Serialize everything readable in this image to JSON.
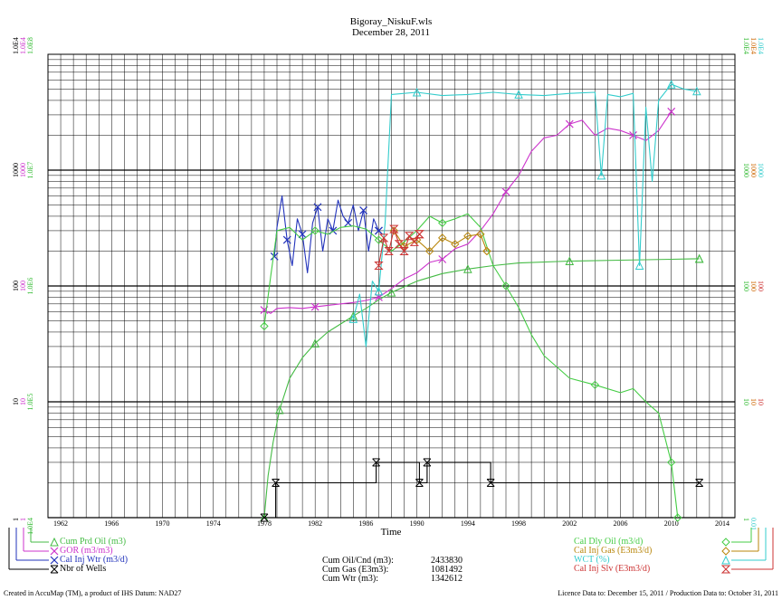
{
  "chart_data": {
    "type": "line",
    "title": "Bigoray_NiskuF.wls",
    "subtitle": "December 28, 2011",
    "xlabel": "Time",
    "x_ticks": [
      "1962",
      "1966",
      "1970",
      "1974",
      "1978",
      "1982",
      "1986",
      "1990",
      "1994",
      "1998",
      "2002",
      "2006",
      "2010",
      "2014"
    ],
    "xlim": [
      1961,
      2015
    ],
    "y_scale": "log",
    "ylim": [
      1,
      10000
    ],
    "left_axis_labels": [
      {
        "value": 10000,
        "lines": [
          {
            "text": "1.0E4",
            "color": "#000000"
          },
          {
            "text": "1.0E4",
            "color": "#cc33cc"
          },
          {
            "text": "1.0E8",
            "color": "#33bb33"
          }
        ]
      },
      {
        "value": 1000,
        "lines": [
          {
            "text": "1000",
            "color": "#000000"
          },
          {
            "text": "1000",
            "color": "#cc33cc"
          },
          {
            "text": "1.0E7",
            "color": "#33bb33"
          }
        ]
      },
      {
        "value": 100,
        "lines": [
          {
            "text": "100",
            "color": "#000000"
          },
          {
            "text": "100",
            "color": "#cc33cc"
          },
          {
            "text": "1.0E6",
            "color": "#33bb33"
          }
        ]
      },
      {
        "value": 10,
        "lines": [
          {
            "text": "10",
            "color": "#000000"
          },
          {
            "text": "10",
            "color": "#cc33cc"
          },
          {
            "text": "1.0E5",
            "color": "#33bb33"
          }
        ]
      },
      {
        "value": 1,
        "lines": [
          {
            "text": "1",
            "color": "#000000"
          },
          {
            "text": "1",
            "color": "#cc33cc"
          },
          {
            "text": "1.0E4",
            "color": "#33bb33"
          }
        ]
      }
    ],
    "right_axis_labels": [
      {
        "value": 10000,
        "lines": [
          {
            "text": "1.0E4",
            "color": "#33bb33"
          },
          {
            "text": "1.0E4",
            "color": "#cc6600"
          },
          {
            "text": "1.0E4",
            "color": "#33cccc"
          }
        ]
      },
      {
        "value": 1000,
        "lines": [
          {
            "text": "1000",
            "color": "#33bb33"
          },
          {
            "text": "1000",
            "color": "#cc6600"
          },
          {
            "text": "1000",
            "color": "#33cccc"
          }
        ]
      },
      {
        "value": 100,
        "lines": [
          {
            "text": "100",
            "color": "#33bb33"
          },
          {
            "text": "100",
            "color": "#cc6600"
          },
          {
            "text": "100",
            "color": "#cc3333"
          }
        ]
      },
      {
        "value": 10,
        "lines": [
          {
            "text": "10",
            "color": "#33bb33"
          },
          {
            "text": "10",
            "color": "#cc6600"
          },
          {
            "text": "10",
            "color": "#cc3333"
          }
        ]
      },
      {
        "value": 1,
        "lines": [
          {
            "text": "1",
            "color": "#33bb33"
          },
          {
            "text": "0.01",
            "color": "#33cccc"
          }
        ]
      }
    ],
    "series": [
      {
        "name": "Cum Prd Oil (m3)",
        "color": "#44bb44",
        "marker": "triangle",
        "x": [
          1978.0,
          1978.3,
          1978.7,
          1979.2,
          1980,
          1981,
          1982,
          1983,
          1984,
          1985,
          1986,
          1987,
          1988,
          1990,
          1992,
          1994,
          1996,
          1998,
          2002,
          2006,
          2010,
          2012.2
        ],
        "y": [
          1.0,
          2.3,
          4.5,
          8.5,
          16,
          24,
          32,
          40,
          47,
          55,
          64,
          76,
          88,
          110,
          128,
          140,
          150,
          158,
          164,
          167,
          170,
          172
        ]
      },
      {
        "name": "GOR (m3/m3)",
        "color": "#cc33cc",
        "marker": "x",
        "x": [
          1978,
          1978.5,
          1979,
          1980,
          1981,
          1982,
          1983,
          1984,
          1985,
          1986,
          1987,
          1988,
          1989,
          1990,
          1991,
          1992,
          1993,
          1994,
          1995,
          1996,
          1997,
          1998,
          1999,
          2000,
          2001,
          2002,
          2003,
          2004,
          2005,
          2006,
          2007,
          2008,
          2009,
          2010
        ],
        "y": [
          62,
          58,
          64,
          65,
          64,
          66,
          68,
          70,
          72,
          75,
          80,
          95,
          115,
          130,
          160,
          170,
          210,
          230,
          300,
          420,
          650,
          900,
          1450,
          1900,
          2000,
          2500,
          2700,
          2000,
          2300,
          2200,
          2000,
          1800,
          2200,
          3200
        ]
      },
      {
        "name": "Cal Inj Wtr (m3/d)",
        "color": "#2233bb",
        "marker": "x",
        "x": [
          1978.8,
          1979,
          1979.4,
          1979.8,
          1980.2,
          1980.6,
          1981,
          1981.4,
          1981.8,
          1982.2,
          1982.6,
          1983,
          1983.4,
          1983.8,
          1984.2,
          1984.6,
          1985,
          1985.4,
          1985.8,
          1986.2,
          1986.6,
          1987
        ],
        "y": [
          180,
          320,
          600,
          250,
          150,
          380,
          280,
          130,
          350,
          480,
          200,
          380,
          300,
          550,
          400,
          350,
          500,
          300,
          450,
          200,
          380,
          300
        ]
      },
      {
        "name": "Nbr of Wells",
        "color": "#000000",
        "marker": "xbox",
        "x": [
          1978,
          1978.9,
          1978.9,
          1986.8,
          1986.8,
          1990.2,
          1990.2,
          1990.8,
          1990.8,
          1995.8,
          1995.8,
          2012.2
        ],
        "y": [
          1,
          1,
          2,
          2,
          3,
          3,
          2,
          2,
          3,
          3,
          2,
          2
        ]
      },
      {
        "name": "Cal Dly Oil (m3/d)",
        "color": "#44cc44",
        "marker": "diamond",
        "x": [
          1978,
          1978.5,
          1979,
          1980,
          1981,
          1982,
          1983,
          1984,
          1985,
          1986,
          1987,
          1988,
          1989,
          1990,
          1991,
          1992,
          1993,
          1994,
          1995,
          1996,
          1997,
          1998,
          1999,
          2000,
          2002,
          2004,
          2006,
          2007,
          2008,
          2009,
          2010,
          2010.5
        ],
        "y": [
          45,
          120,
          300,
          320,
          250,
          300,
          280,
          320,
          330,
          310,
          250,
          200,
          240,
          300,
          400,
          350,
          380,
          420,
          320,
          150,
          100,
          65,
          38,
          25,
          16,
          14,
          12,
          13,
          10,
          8,
          3,
          1
        ]
      },
      {
        "name": "Cal Inj Gas (E3m3/d)",
        "color": "#b8860b",
        "marker": "diamond",
        "x": [
          1988.2,
          1989,
          1990,
          1991,
          1992,
          1993,
          1994,
          1995,
          1995.5
        ],
        "y": [
          300,
          220,
          250,
          200,
          260,
          230,
          270,
          280,
          200
        ]
      },
      {
        "name": "WCT (%)",
        "color": "#33cccc",
        "marker": "triangle",
        "x": [
          1985,
          1985.5,
          1986,
          1986.5,
          1987,
          1987.5,
          1988,
          1989,
          1990,
          1992,
          1994,
          1996,
          1998,
          2000,
          2002,
          2004,
          2004.5,
          2005,
          2006,
          2007,
          2007.5,
          2008,
          2008.5,
          2009,
          2010,
          2011,
          2012
        ],
        "y": [
          52,
          85,
          30,
          110,
          90,
          350,
          4500,
          4600,
          4700,
          4400,
          4500,
          4700,
          4500,
          4400,
          4600,
          4700,
          900,
          4500,
          4300,
          4600,
          150,
          3500,
          800,
          4000,
          5500,
          5000,
          4800
        ]
      },
      {
        "name": "Cal Inj Slv (E3m3/d)",
        "color": "#cc3333",
        "marker": "hourglass",
        "x": [
          1987,
          1987.4,
          1987.8,
          1988.2,
          1988.6,
          1989,
          1989.4,
          1989.8,
          1990.2
        ],
        "y": [
          150,
          260,
          200,
          310,
          230,
          200,
          270,
          240,
          280
        ]
      }
    ],
    "legend_left": [
      {
        "label": "Cum Prd Oil (m3)",
        "color": "#44bb44",
        "marker": "triangle"
      },
      {
        "label": "GOR (m3/m3)",
        "color": "#cc33cc",
        "marker": "x"
      },
      {
        "label": "Cal Inj Wtr (m3/d)",
        "color": "#2233bb",
        "marker": "x"
      },
      {
        "label": "Nbr of Wells",
        "color": "#000000",
        "marker": "xbox"
      }
    ],
    "legend_right": [
      {
        "label": "Cal Dly Oil (m3/d)",
        "color": "#44cc44",
        "marker": "diamond"
      },
      {
        "label": "Cal Inj Gas (E3m3/d)",
        "color": "#b8860b",
        "marker": "diamond"
      },
      {
        "label": "WCT (%)",
        "color": "#33cccc",
        "marker": "triangle"
      },
      {
        "label": "Cal Inj Slv (E3m3/d)",
        "color": "#cc3333",
        "marker": "hourglass"
      }
    ]
  },
  "stats": [
    {
      "label": "Cum Oil/Cnd (m3):",
      "value": "2433830"
    },
    {
      "label": "Cum Gas (E3m3):",
      "value": "1081492"
    },
    {
      "label": "Cum Wtr (m3):",
      "value": "1342612"
    }
  ],
  "footer": {
    "left": "Created in AccuMap (TM), a product of IHS  Datum: NAD27",
    "right": "Licence Data to: December 15, 2011 / Production Data to: October 31, 2011"
  }
}
